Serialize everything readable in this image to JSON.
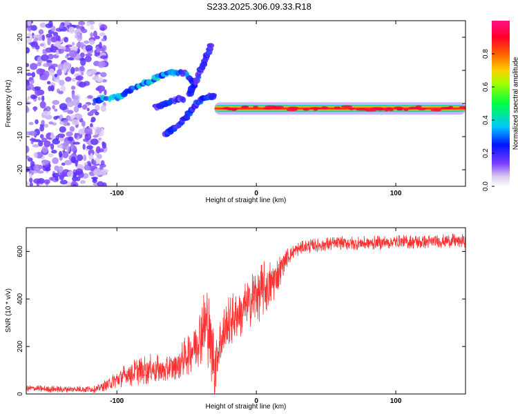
{
  "title": "S233.2025.306.09.33.R18",
  "chart_data": [
    {
      "type": "heatmap",
      "title": "S233.2025.306.09.33.R18",
      "xlabel": "Height of straight line (km)",
      "ylabel": "Frequency (Hz)",
      "xlim": [
        -165,
        150
      ],
      "ylim": [
        -25,
        25
      ],
      "x_ticks": [
        -100,
        0,
        100
      ],
      "x_tick_labels": [
        "-100",
        "0",
        "100"
      ],
      "y_ticks": [
        -20,
        -10,
        0,
        10,
        20
      ],
      "y_tick_labels": [
        "-20",
        "-10",
        "0",
        "10",
        "20"
      ],
      "colorbar": {
        "label": "Normalized spectral amplitude",
        "range": [
          0,
          1
        ],
        "ticks": [
          0.0,
          0.2,
          0.4,
          0.6,
          0.8
        ],
        "tick_labels": [
          "0.0",
          "0.2",
          "0.4",
          "0.6",
          "0.8"
        ],
        "colormap": "rainbow (purple-blue-cyan-green-yellow-orange-red-magenta)"
      },
      "features": [
        {
          "name": "noise-scatter",
          "x_range": [
            -165,
            -108
          ],
          "y_range": [
            -25,
            25
          ],
          "amplitude": 0.15
        },
        {
          "name": "upper-branch",
          "points": [
            [
              -115,
              1
            ],
            [
              -100,
              2
            ],
            [
              -90,
              4
            ],
            [
              -80,
              6
            ],
            [
              -70,
              8
            ],
            [
              -60,
              9.5
            ],
            [
              -50,
              9
            ],
            [
              -45,
              6
            ]
          ],
          "amplitude": 0.3
        },
        {
          "name": "steep-branch",
          "points": [
            [
              -48,
              3
            ],
            [
              -44,
              6
            ],
            [
              -40,
              10
            ],
            [
              -36,
              14
            ],
            [
              -34,
              16
            ],
            [
              -33,
              18
            ]
          ],
          "amplitude": 0.22
        },
        {
          "name": "lower-branch",
          "points": [
            [
              -65,
              -9
            ],
            [
              -60,
              -8
            ],
            [
              -55,
              -6
            ],
            [
              -50,
              -4
            ],
            [
              -45,
              -1
            ],
            [
              -40,
              1
            ],
            [
              -35,
              2
            ],
            [
              -30,
              2.5
            ]
          ],
          "amplitude": 0.22
        },
        {
          "name": "middle-arc",
          "points": [
            [
              -72,
              -1
            ],
            [
              -65,
              0
            ],
            [
              -58,
              1
            ],
            [
              -52,
              1.5
            ]
          ],
          "amplitude": 0.2
        },
        {
          "name": "main-line",
          "x_range": [
            -30,
            150
          ],
          "frequency": -1.5,
          "amplitude": 0.85
        }
      ]
    },
    {
      "type": "line",
      "title": "",
      "xlabel": "Height of straight line (km)",
      "ylabel": "SNR (10 * v/v)",
      "xlim": [
        -165,
        150
      ],
      "ylim": [
        0,
        700
      ],
      "x_ticks": [
        -100,
        0,
        100
      ],
      "x_tick_labels": [
        "-100",
        "0",
        "100"
      ],
      "y_ticks": [
        0,
        200,
        400,
        600
      ],
      "y_tick_labels": [
        "0",
        "200",
        "400",
        "600"
      ],
      "color": "#ff3030",
      "series": [
        {
          "name": "SNR",
          "x": [
            -165,
            -150,
            -130,
            -115,
            -105,
            -95,
            -85,
            -75,
            -65,
            -55,
            -45,
            -40,
            -35,
            -30,
            -25,
            -20,
            -15,
            -10,
            -5,
            0,
            5,
            10,
            15,
            20,
            25,
            30,
            40,
            50,
            60,
            80,
            100,
            120,
            140,
            150
          ],
          "values": [
            25,
            20,
            20,
            20,
            45,
            75,
            95,
            105,
            100,
            130,
            200,
            260,
            300,
            120,
            230,
            300,
            330,
            350,
            380,
            420,
            440,
            460,
            500,
            560,
            590,
            610,
            625,
            630,
            635,
            635,
            640,
            640,
            645,
            645
          ],
          "spread": [
            15,
            15,
            15,
            15,
            30,
            50,
            60,
            65,
            60,
            70,
            110,
            140,
            180,
            140,
            120,
            110,
            110,
            110,
            120,
            130,
            120,
            110,
            80,
            50,
            35,
            30,
            30,
            30,
            30,
            30,
            30,
            30,
            30,
            30
          ]
        }
      ]
    }
  ]
}
